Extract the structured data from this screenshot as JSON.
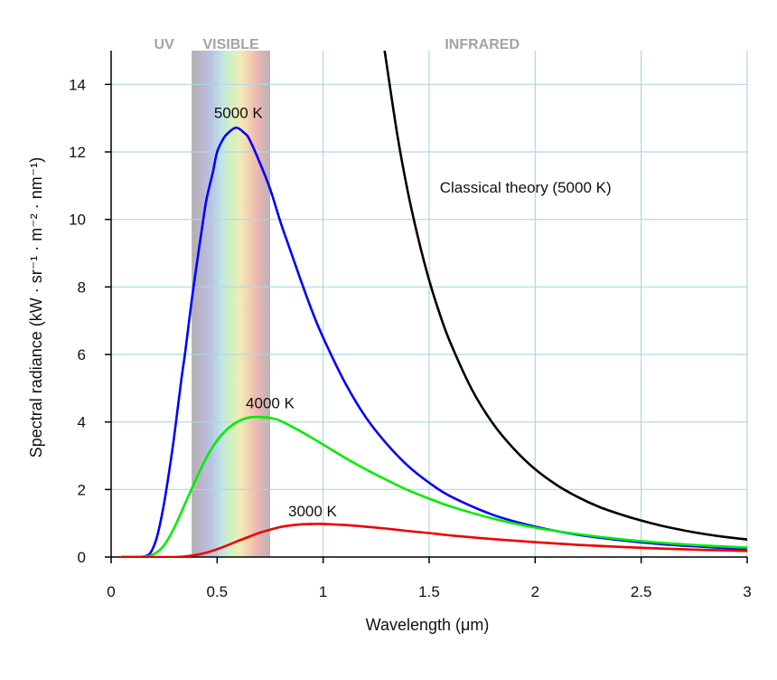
{
  "chart_data": {
    "type": "line",
    "title": "",
    "xlabel": "Wavelength (μm)",
    "ylabel": "Spectral radiance (kW · sr⁻¹ · m⁻² · nm⁻¹)",
    "xlim": [
      0,
      3
    ],
    "ylim": [
      0,
      15
    ],
    "x_ticks": [
      0,
      0.5,
      1,
      1.5,
      2,
      2.5,
      3
    ],
    "x_tick_labels": [
      "0",
      "0.5",
      "1",
      "1.5",
      "2",
      "2.5",
      "3"
    ],
    "y_ticks": [
      0,
      2,
      4,
      6,
      8,
      10,
      12,
      14
    ],
    "y_tick_labels": [
      "0",
      "2",
      "4",
      "6",
      "8",
      "10",
      "12",
      "14"
    ],
    "grid": true,
    "regions": [
      {
        "label": "UV",
        "center": 0.25
      },
      {
        "label": "VISIBLE",
        "range": [
          0.38,
          0.75
        ]
      },
      {
        "label": "INFRARED",
        "center": 1.75
      }
    ],
    "series": [
      {
        "name": "5000 K",
        "color": "#0000ff",
        "x": [
          0.05,
          0.1,
          0.15,
          0.18,
          0.2,
          0.22,
          0.25,
          0.28,
          0.3,
          0.33,
          0.35,
          0.38,
          0.4,
          0.43,
          0.45,
          0.48,
          0.5,
          0.53,
          0.55,
          0.58,
          0.6,
          0.63,
          0.65,
          0.7,
          0.75,
          0.8,
          0.85,
          0.9,
          0.95,
          1.0,
          1.1,
          1.2,
          1.3,
          1.4,
          1.5,
          1.6,
          1.8,
          2.0,
          2.2,
          2.4,
          2.6,
          2.8,
          3.0
        ],
        "y": [
          0,
          0,
          0.01,
          0.08,
          0.3,
          0.68,
          1.6,
          2.8,
          3.7,
          5.2,
          6.1,
          7.6,
          8.5,
          9.8,
          10.6,
          11.4,
          12.0,
          12.4,
          12.55,
          12.7,
          12.7,
          12.55,
          12.4,
          11.7,
          10.9,
          9.9,
          9.0,
          8.1,
          7.25,
          6.5,
          5.2,
          4.15,
          3.35,
          2.7,
          2.2,
          1.8,
          1.25,
          0.9,
          0.66,
          0.5,
          0.38,
          0.3,
          0.23
        ]
      },
      {
        "name": "4000 K",
        "color": "#00ee00",
        "x": [
          0.05,
          0.15,
          0.2,
          0.25,
          0.3,
          0.35,
          0.4,
          0.45,
          0.5,
          0.55,
          0.6,
          0.65,
          0.7,
          0.75,
          0.8,
          0.9,
          1.0,
          1.1,
          1.2,
          1.3,
          1.4,
          1.5,
          1.6,
          1.8,
          2.0,
          2.2,
          2.4,
          2.6,
          2.8,
          3.0
        ],
        "y": [
          0,
          0.01,
          0.08,
          0.35,
          0.9,
          1.6,
          2.3,
          2.95,
          3.45,
          3.8,
          4.02,
          4.13,
          4.15,
          4.12,
          4.03,
          3.7,
          3.33,
          2.95,
          2.6,
          2.28,
          1.98,
          1.73,
          1.5,
          1.14,
          0.87,
          0.68,
          0.53,
          0.42,
          0.34,
          0.28
        ]
      },
      {
        "name": "3000 K",
        "color": "#ee0000",
        "x": [
          0.05,
          0.3,
          0.35,
          0.4,
          0.45,
          0.5,
          0.55,
          0.6,
          0.65,
          0.7,
          0.75,
          0.8,
          0.85,
          0.9,
          0.95,
          1.0,
          1.1,
          1.2,
          1.3,
          1.4,
          1.5,
          1.6,
          1.8,
          2.0,
          2.2,
          2.4,
          2.6,
          2.8,
          3.0
        ],
        "y": [
          0,
          0,
          0.02,
          0.06,
          0.13,
          0.23,
          0.35,
          0.48,
          0.6,
          0.72,
          0.81,
          0.89,
          0.94,
          0.97,
          0.98,
          0.98,
          0.95,
          0.9,
          0.84,
          0.77,
          0.71,
          0.64,
          0.53,
          0.44,
          0.36,
          0.3,
          0.25,
          0.21,
          0.18
        ]
      },
      {
        "name": "Classical theory (5000 K)",
        "color": "#000000",
        "x": [
          1.29,
          1.35,
          1.4,
          1.45,
          1.5,
          1.55,
          1.6,
          1.7,
          1.8,
          1.9,
          2.0,
          2.1,
          2.2,
          2.3,
          2.4,
          2.5,
          2.6,
          2.7,
          2.8,
          2.9,
          3.0
        ],
        "y": [
          15.0,
          12.5,
          10.8,
          9.4,
          8.2,
          7.2,
          6.35,
          4.98,
          3.96,
          3.2,
          2.6,
          2.14,
          1.78,
          1.49,
          1.27,
          1.08,
          0.92,
          0.79,
          0.68,
          0.59,
          0.52
        ]
      }
    ],
    "annotations": [
      {
        "text": "5000 K",
        "x": 0.6,
        "y": 13.0
      },
      {
        "text": "4000 K",
        "x": 0.75,
        "y": 4.4
      },
      {
        "text": "3000 K",
        "x": 0.95,
        "y": 1.2
      },
      {
        "text": "Classical theory (5000 K)",
        "x": 1.55,
        "y": 10.8
      }
    ]
  }
}
